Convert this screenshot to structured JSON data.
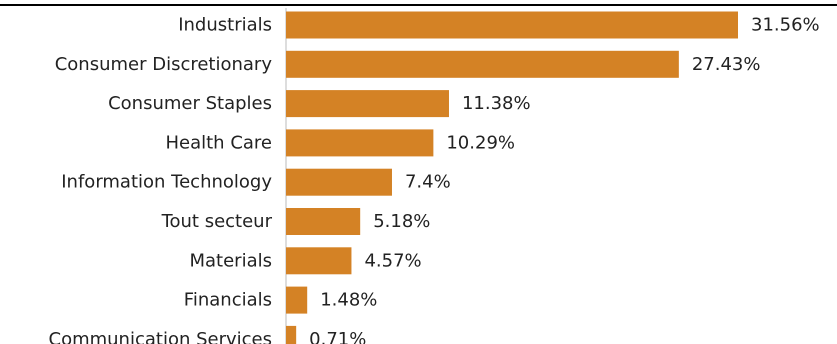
{
  "colors": {
    "bar": "#D48225",
    "axis_line": "#000000",
    "text": "#222222"
  },
  "chart_data": {
    "type": "bar",
    "orientation": "horizontal",
    "title": "",
    "xlabel": "",
    "ylabel": "",
    "grid": false,
    "xlim": [
      0,
      33
    ],
    "categories": [
      "Industrials",
      "Consumer Discretionary",
      "Consumer Staples",
      "Health Care",
      "Information Technology",
      "Tout secteur",
      "Materials",
      "Financials",
      "Communication Services"
    ],
    "values": [
      31.56,
      27.43,
      11.38,
      10.29,
      7.4,
      5.18,
      4.57,
      1.48,
      0.71
    ],
    "value_labels": [
      "31.56%",
      "27.43%",
      "11.38%",
      "10.29%",
      "7.4%",
      "5.18%",
      "4.57%",
      "1.48%",
      "0.71%"
    ]
  }
}
